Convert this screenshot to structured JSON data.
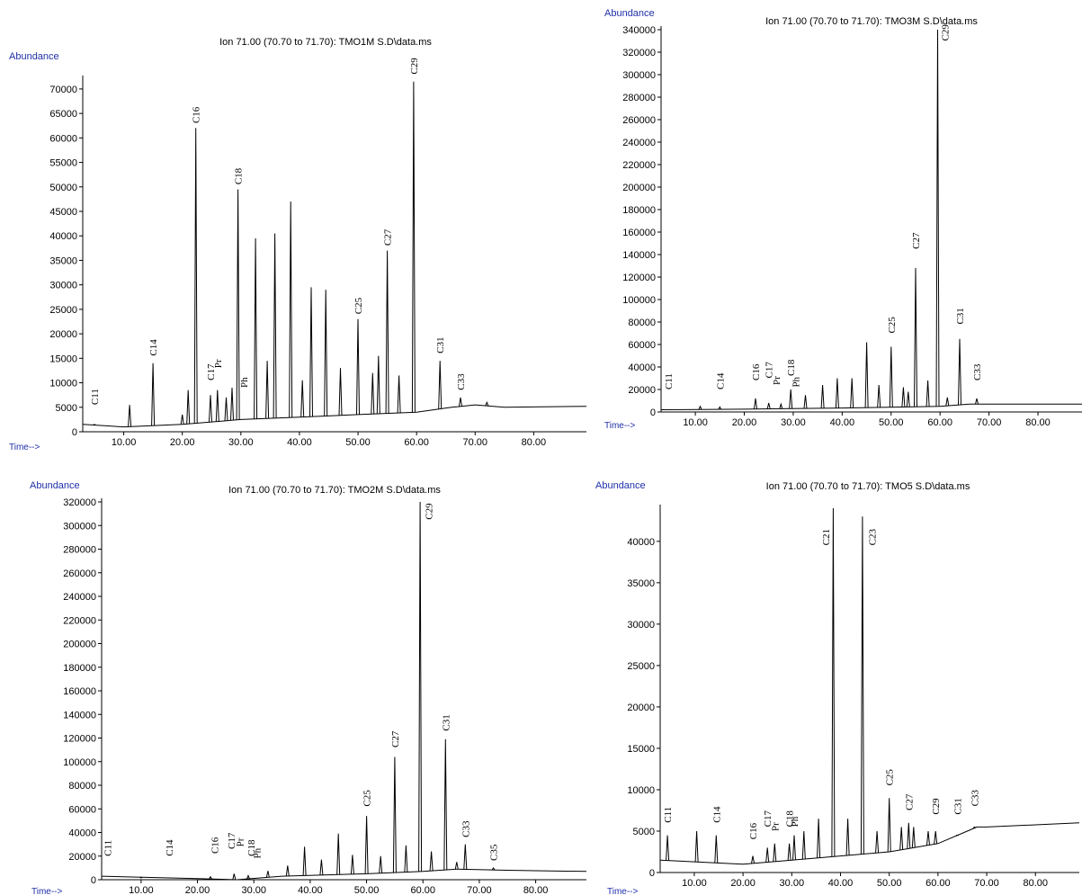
{
  "chart_data": [
    {
      "type": "line",
      "title": "Ion  71.00 (70.70 to 71.70): TMO1M S.D\\data.ms",
      "ylabel": "Abundance",
      "xlabel": "Time-->",
      "xlim": [
        3,
        89
      ],
      "ylim": [
        0,
        72000
      ],
      "xticks": [
        "10.00",
        "20.00",
        "30.00",
        "40.00",
        "50.00",
        "60.00",
        "70.00",
        "80.00"
      ],
      "yticks": [
        "0",
        "5000",
        "10000",
        "15000",
        "20000",
        "25000",
        "30000",
        "35000",
        "40000",
        "45000",
        "50000",
        "55000",
        "60000",
        "65000",
        "70000"
      ],
      "baseline": [
        [
          3,
          1500
        ],
        [
          10,
          1000
        ],
        [
          20,
          1500
        ],
        [
          30,
          2500
        ],
        [
          40,
          3000
        ],
        [
          50,
          3500
        ],
        [
          60,
          4000
        ],
        [
          66,
          5000
        ],
        [
          70,
          5500
        ],
        [
          75,
          5000
        ],
        [
          89,
          5200
        ]
      ],
      "peaks": [
        [
          5,
          1500
        ],
        [
          11,
          5500
        ],
        [
          15,
          14000
        ],
        [
          20,
          3500
        ],
        [
          21,
          8500
        ],
        [
          22.3,
          62000
        ],
        [
          24.8,
          7500
        ],
        [
          26,
          8500
        ],
        [
          27.5,
          7000
        ],
        [
          28.5,
          9000
        ],
        [
          29.5,
          49500
        ],
        [
          32.5,
          39500
        ],
        [
          34.5,
          14500
        ],
        [
          35.8,
          40500
        ],
        [
          38.5,
          47000
        ],
        [
          40.5,
          10500
        ],
        [
          42,
          29500
        ],
        [
          44.5,
          29000
        ],
        [
          47,
          13000
        ],
        [
          50,
          23000
        ],
        [
          52.5,
          12000
        ],
        [
          53.5,
          15500
        ],
        [
          55,
          37000
        ],
        [
          57,
          11500
        ],
        [
          59.5,
          71500
        ],
        [
          64,
          14500
        ],
        [
          67.5,
          7000
        ],
        [
          72,
          6000
        ]
      ],
      "labels": [
        {
          "text": "C11",
          "x": 5,
          "y": 5500
        },
        {
          "text": "C14",
          "x": 15,
          "y": 15500
        },
        {
          "text": "C16",
          "x": 22.3,
          "y": 63000
        },
        {
          "text": "C17",
          "x": 24.8,
          "y": 10500
        },
        {
          "text": "Pr",
          "x": 26,
          "y": 13000
        },
        {
          "text": "C18",
          "x": 29.5,
          "y": 50500
        },
        {
          "text": "Ph",
          "x": 30.5,
          "y": 9000
        },
        {
          "text": "C25",
          "x": 50,
          "y": 24000
        },
        {
          "text": "C27",
          "x": 55,
          "y": 38000
        },
        {
          "text": "C29",
          "x": 59.5,
          "y": 73000
        },
        {
          "text": "C31",
          "x": 64,
          "y": 16000
        },
        {
          "text": "C33",
          "x": 67.5,
          "y": 8500
        }
      ]
    },
    {
      "type": "line",
      "title": "Ion  71.00 (70.70 to 71.70): TMO3M S.D\\data.ms",
      "ylabel": "Abundance",
      "xlabel": "Time-->",
      "xlim": [
        3,
        89
      ],
      "ylim": [
        0,
        340000
      ],
      "xticks": [
        "10.00",
        "20.00",
        "30.00",
        "40.00",
        "50.00",
        "60.00",
        "70.00",
        "80.00"
      ],
      "yticks": [
        "0",
        "20000",
        "40000",
        "60000",
        "80000",
        "100000",
        "120000",
        "140000",
        "160000",
        "180000",
        "200000",
        "220000",
        "240000",
        "260000",
        "280000",
        "300000",
        "320000",
        "340000"
      ],
      "baseline": [
        [
          3,
          2000
        ],
        [
          20,
          2500
        ],
        [
          40,
          3500
        ],
        [
          60,
          5000
        ],
        [
          66,
          7000
        ],
        [
          70,
          7000
        ],
        [
          89,
          7000
        ]
      ],
      "peaks": [
        [
          11,
          5000
        ],
        [
          15,
          4500
        ],
        [
          22.3,
          12000
        ],
        [
          25,
          8000
        ],
        [
          27.5,
          7000
        ],
        [
          29.5,
          20000
        ],
        [
          32.5,
          15000
        ],
        [
          36,
          24000
        ],
        [
          39,
          30000
        ],
        [
          42,
          30000
        ],
        [
          45,
          62000
        ],
        [
          47.5,
          24000
        ],
        [
          50,
          58000
        ],
        [
          52.5,
          22000
        ],
        [
          53.5,
          18000
        ],
        [
          55,
          128000
        ],
        [
          57.5,
          28000
        ],
        [
          59.5,
          340000
        ],
        [
          61.5,
          13000
        ],
        [
          64,
          65000
        ],
        [
          67.5,
          12000
        ]
      ],
      "labels": [
        {
          "text": "C11",
          "x": 4.5,
          "y": 20000
        },
        {
          "text": "C14",
          "x": 15,
          "y": 20000
        },
        {
          "text": "C16",
          "x": 22.3,
          "y": 28000
        },
        {
          "text": "C17",
          "x": 25,
          "y": 30000
        },
        {
          "text": "Pr",
          "x": 26.5,
          "y": 24000
        },
        {
          "text": "C18",
          "x": 29.5,
          "y": 32000
        },
        {
          "text": "Ph",
          "x": 30.5,
          "y": 22000
        },
        {
          "text": "C25",
          "x": 50,
          "y": 70000
        },
        {
          "text": "C27",
          "x": 55,
          "y": 145000
        },
        {
          "text": "C29",
          "x": 61,
          "y": 330000
        },
        {
          "text": "C31",
          "x": 64,
          "y": 78000
        },
        {
          "text": "C33",
          "x": 67.5,
          "y": 28000
        }
      ]
    },
    {
      "type": "line",
      "title": "Ion  71.00 (70.70 to 71.70): TMO2M S.D\\data.ms",
      "ylabel": "Abundance",
      "xlabel": "Time-->",
      "xlim": [
        3,
        89
      ],
      "ylim": [
        0,
        320000
      ],
      "xticks": [
        "10.00",
        "20.00",
        "30.00",
        "40.00",
        "50.00",
        "60.00",
        "70.00",
        "80.00"
      ],
      "yticks": [
        "0",
        "20000",
        "40000",
        "60000",
        "80000",
        "100000",
        "120000",
        "140000",
        "160000",
        "180000",
        "200000",
        "220000",
        "240000",
        "260000",
        "280000",
        "300000",
        "320000"
      ],
      "baseline": [
        [
          3,
          3000
        ],
        [
          20,
          1000
        ],
        [
          27,
          0
        ],
        [
          35,
          3000
        ],
        [
          50,
          5000
        ],
        [
          60,
          7000
        ],
        [
          66,
          9000
        ],
        [
          75,
          8000
        ],
        [
          89,
          7000
        ]
      ],
      "peaks": [
        [
          10,
          1500
        ],
        [
          22.3,
          2500
        ],
        [
          26.5,
          5000
        ],
        [
          29,
          3500
        ],
        [
          32.5,
          7500
        ],
        [
          36,
          12000
        ],
        [
          39,
          28000
        ],
        [
          42,
          17000
        ],
        [
          45,
          39000
        ],
        [
          47.5,
          21000
        ],
        [
          50,
          54000
        ],
        [
          52.5,
          20000
        ],
        [
          55,
          104000
        ],
        [
          57,
          29000
        ],
        [
          59.5,
          320000
        ],
        [
          61.5,
          24000
        ],
        [
          64,
          119000
        ],
        [
          66,
          15000
        ],
        [
          67.5,
          30000
        ],
        [
          72.5,
          10000
        ]
      ],
      "labels": [
        {
          "text": "C11",
          "x": 4,
          "y": 20000
        },
        {
          "text": "C14",
          "x": 15,
          "y": 20000
        },
        {
          "text": "C16",
          "x": 23,
          "y": 22000
        },
        {
          "text": "C17",
          "x": 26,
          "y": 26000
        },
        {
          "text": "Pr",
          "x": 27.5,
          "y": 28000
        },
        {
          "text": "C18",
          "x": 29.5,
          "y": 20000
        },
        {
          "text": "Ph",
          "x": 30.5,
          "y": 18000
        },
        {
          "text": "C25",
          "x": 50,
          "y": 62000
        },
        {
          "text": "C27",
          "x": 55,
          "y": 112000
        },
        {
          "text": "C29",
          "x": 61,
          "y": 305000
        },
        {
          "text": "C31",
          "x": 64,
          "y": 126000
        },
        {
          "text": "C33",
          "x": 67.5,
          "y": 36000
        },
        {
          "text": "C35",
          "x": 72.5,
          "y": 16000
        }
      ]
    },
    {
      "type": "line",
      "title": "Ion  71.00 (70.70 to 71.70): TMO5 S.D\\data.ms",
      "ylabel": "Abundance",
      "xlabel": "Time-->",
      "xlim": [
        3,
        89
      ],
      "ylim": [
        0,
        44000
      ],
      "xticks": [
        "10.00",
        "20.00",
        "30.00",
        "40.00",
        "50.00",
        "60.00",
        "70.00",
        "80.00"
      ],
      "yticks": [
        "0",
        "5000",
        "10000",
        "15000",
        "20000",
        "25000",
        "30000",
        "35000",
        "40000"
      ],
      "baseline": [
        [
          3,
          1500
        ],
        [
          20,
          1000
        ],
        [
          30,
          1500
        ],
        [
          40,
          2000
        ],
        [
          50,
          2500
        ],
        [
          60,
          3500
        ],
        [
          66,
          5000
        ],
        [
          68,
          5500
        ],
        [
          70,
          5500
        ],
        [
          89,
          6000
        ]
      ],
      "peaks": [
        [
          4.5,
          4500
        ],
        [
          10.5,
          5000
        ],
        [
          14.5,
          4500
        ],
        [
          22,
          2000
        ],
        [
          25,
          3000
        ],
        [
          26.5,
          3500
        ],
        [
          29.5,
          3500
        ],
        [
          30.5,
          4500
        ],
        [
          32.5,
          5000
        ],
        [
          35.5,
          6500
        ],
        [
          38.5,
          44000
        ],
        [
          41.5,
          6500
        ],
        [
          44.5,
          43000
        ],
        [
          47.5,
          5000
        ],
        [
          50,
          9000
        ],
        [
          52.5,
          5500
        ],
        [
          54,
          6000
        ],
        [
          55,
          5500
        ],
        [
          58,
          5000
        ],
        [
          59.5,
          5000
        ],
        [
          64,
          4500
        ],
        [
          67.5,
          5500
        ]
      ],
      "labels": [
        {
          "text": "C11",
          "x": 4.5,
          "y": 6000
        },
        {
          "text": "C14",
          "x": 14.5,
          "y": 6000
        },
        {
          "text": "C16",
          "x": 22,
          "y": 4000
        },
        {
          "text": "C17",
          "x": 25,
          "y": 5500
        },
        {
          "text": "Pr",
          "x": 26.5,
          "y": 5000
        },
        {
          "text": "C18",
          "x": 29.5,
          "y": 5500
        },
        {
          "text": "Ph",
          "x": 30.5,
          "y": 5500
        },
        {
          "text": "C21",
          "x": 37,
          "y": 39500
        },
        {
          "text": "C23",
          "x": 46.5,
          "y": 39500
        },
        {
          "text": "C25",
          "x": 50,
          "y": 10500
        },
        {
          "text": "C27",
          "x": 54,
          "y": 7500
        },
        {
          "text": "C29",
          "x": 59.5,
          "y": 7000
        },
        {
          "text": "C31",
          "x": 64,
          "y": 7000
        },
        {
          "text": "C33",
          "x": 67.5,
          "y": 8000
        }
      ]
    }
  ]
}
